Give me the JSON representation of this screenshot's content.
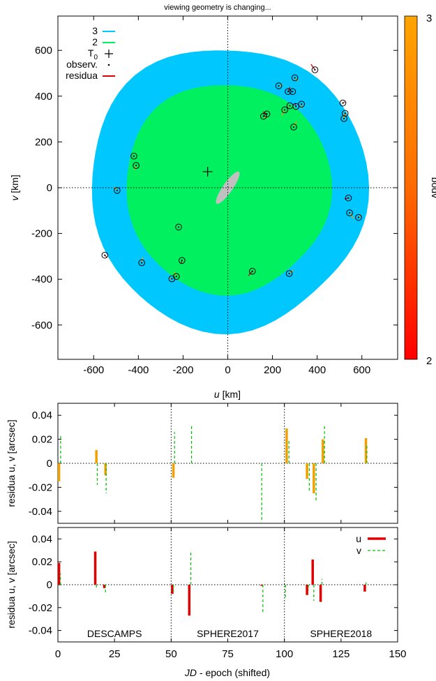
{
  "title": "viewing geometry is changing...",
  "colors": {
    "ring3": "#00c8ff",
    "ring2": "#00f060",
    "asteroid": "#c0c0c0",
    "orange": "#f0a000",
    "red": "#e00000",
    "green": "#00c000"
  },
  "chart_data": [
    {
      "type": "scatter",
      "title": "viewing geometry is changing...",
      "xlabel_italic": "u",
      "xlabel_unit": " [km]",
      "ylabel_italic": "v",
      "ylabel_unit": " [km]",
      "xlim": [
        -760,
        760
      ],
      "ylim": [
        -750,
        750
      ],
      "xticks": [
        -600,
        -400,
        -200,
        0,
        200,
        400,
        600
      ],
      "yticks": [
        -600,
        -400,
        -200,
        0,
        200,
        400,
        600
      ],
      "legend": [
        {
          "label": "3",
          "kind": "line",
          "color": "#00c8ff"
        },
        {
          "label": "2",
          "kind": "line",
          "color": "#00f060"
        },
        {
          "label": "T",
          "sub": "0",
          "kind": "plus"
        },
        {
          "label": "observ.",
          "kind": "dot"
        },
        {
          "label": "residua",
          "kind": "line",
          "color": "#e00000"
        }
      ],
      "colorbar": {
        "label": "bodv",
        "min": 2,
        "max": 3,
        "ticks": [
          2,
          3
        ]
      },
      "ring3_radius": 620,
      "ring2_radius": 460,
      "T0": {
        "u": -90,
        "v": 70
      },
      "observations": [
        {
          "u": 390,
          "v": 515
        },
        {
          "u": 228,
          "v": 445
        },
        {
          "u": 300,
          "v": 480
        },
        {
          "u": 270,
          "v": 420
        },
        {
          "u": 290,
          "v": 420
        },
        {
          "u": 330,
          "v": 365
        },
        {
          "u": 305,
          "v": 355
        },
        {
          "u": 278,
          "v": 358
        },
        {
          "u": 255,
          "v": 340
        },
        {
          "u": 175,
          "v": 322
        },
        {
          "u": 160,
          "v": 312
        },
        {
          "u": 295,
          "v": 265
        },
        {
          "u": 515,
          "v": 370
        },
        {
          "u": 525,
          "v": 325
        },
        {
          "u": 520,
          "v": 302
        },
        {
          "u": -420,
          "v": 138
        },
        {
          "u": -410,
          "v": 97
        },
        {
          "u": -495,
          "v": -12
        },
        {
          "u": 540,
          "v": -45
        },
        {
          "u": 545,
          "v": -110
        },
        {
          "u": 585,
          "v": -130
        },
        {
          "u": -550,
          "v": -295
        },
        {
          "u": -385,
          "v": -328
        },
        {
          "u": -220,
          "v": -172
        },
        {
          "u": -205,
          "v": -318
        },
        {
          "u": -230,
          "v": -388
        },
        {
          "u": -250,
          "v": -398
        },
        {
          "u": 110,
          "v": -365
        },
        {
          "u": 275,
          "v": -375
        }
      ]
    },
    {
      "type": "bar",
      "ylabel": "residua u, v [arcsec]",
      "xlim": [
        0,
        150
      ],
      "ylim": [
        -0.05,
        0.05
      ],
      "yticks": [
        -0.04,
        -0.02,
        0,
        0.02,
        0.04
      ],
      "ytick_labels": [
        "-0.04",
        "-0.02",
        "0",
        "0.02",
        "0.04"
      ],
      "vlines": [
        50,
        100
      ],
      "series": [
        {
          "style": "solid",
          "color": "#f0a000",
          "x": [
            0.5,
            17,
            21,
            51,
            101,
            110,
            113,
            117,
            136
          ],
          "values": [
            -0.015,
            0.011,
            -0.01,
            -0.012,
            0.029,
            -0.013,
            -0.025,
            0.02,
            0.021
          ]
        },
        {
          "style": "dashed",
          "color": "#00c000",
          "x": [
            1.2,
            17.4,
            21.3,
            51.5,
            59,
            90,
            102,
            111,
            114,
            117.7,
            136.4
          ],
          "values": [
            0.023,
            -0.018,
            -0.025,
            0.026,
            0.032,
            -0.049,
            0.019,
            -0.024,
            -0.031,
            0.031,
            0.015
          ]
        }
      ]
    },
    {
      "type": "bar",
      "ylabel": "residua u, v [arcsec]",
      "xlim": [
        0,
        150
      ],
      "ylim": [
        -0.05,
        0.05
      ],
      "yticks": [
        -0.04,
        -0.02,
        0,
        0.02,
        0.04
      ],
      "ytick_labels": [
        "-0.04",
        "-0.02",
        "0",
        "0.02",
        "0.04"
      ],
      "xticks": [
        0,
        25,
        50,
        75,
        100,
        125,
        150
      ],
      "xlabel_italic": "JD",
      "xlabel_rest": " - epoch (shifted)",
      "vlines": [
        50,
        100
      ],
      "annotations": [
        "DESCAMPS",
        "SPHERE2017",
        "SPHERE2018"
      ],
      "legend": [
        {
          "label": "u",
          "style": "solid",
          "color": "#e00000"
        },
        {
          "label": "v",
          "style": "dashed",
          "color": "#00c000"
        }
      ],
      "series": [
        {
          "name": "u",
          "style": "solid",
          "color": "#e00000",
          "x": [
            0.5,
            16.5,
            20.5,
            50.5,
            58,
            90,
            110,
            112.5,
            116,
            135.5
          ],
          "values": [
            0.019,
            0.029,
            -0.003,
            -0.008,
            -0.027,
            -0.001,
            -0.009,
            0.022,
            -0.015,
            -0.006
          ]
        },
        {
          "name": "v",
          "style": "dashed",
          "color": "#00c000",
          "x": [
            1.1,
            17,
            21,
            51,
            58.7,
            90.5,
            100.5,
            110.6,
            113,
            116.6,
            136
          ],
          "values": [
            0.01,
            -0.004,
            -0.007,
            -0.006,
            0.03,
            -0.025,
            -0.013,
            -0.005,
            -0.014,
            0.005,
            0.002
          ]
        }
      ]
    }
  ]
}
